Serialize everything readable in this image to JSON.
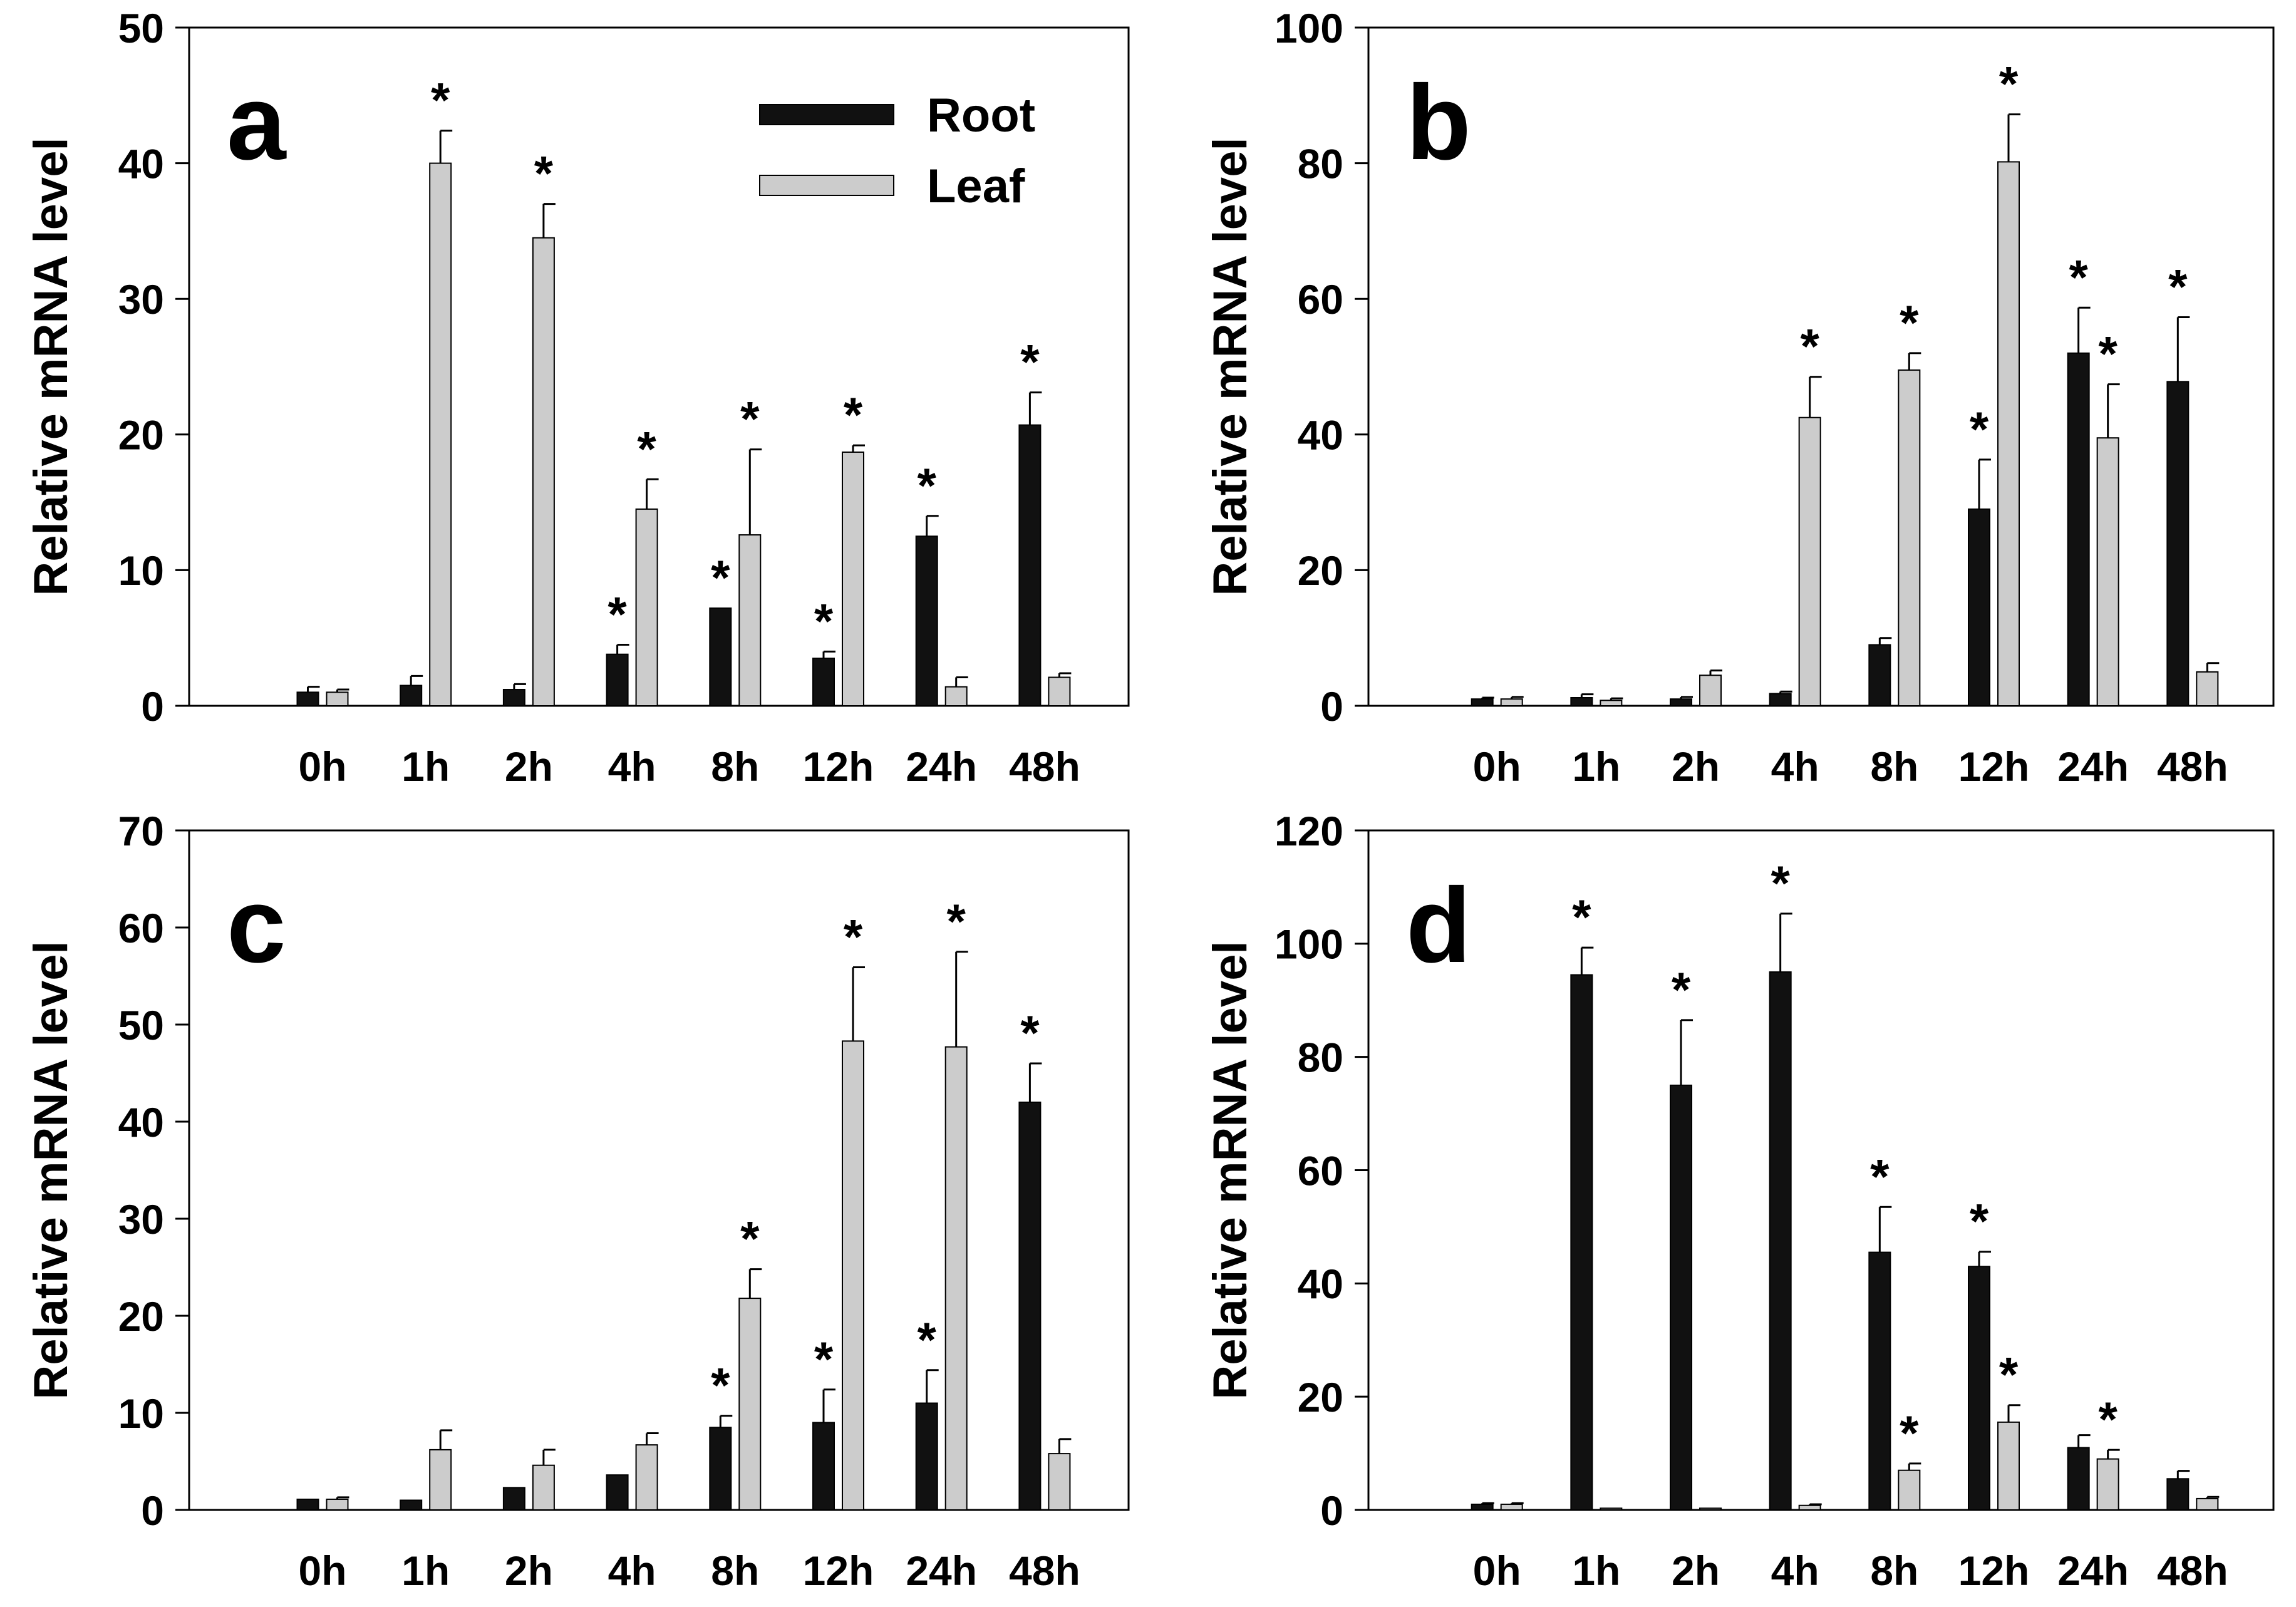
{
  "legend": {
    "items": [
      {
        "label": "Root",
        "color": "#111111"
      },
      {
        "label": "Leaf",
        "color": "#cccccc"
      }
    ]
  },
  "chart_data": [
    {
      "type": "bar",
      "panel_label": "a",
      "categories": [
        "0h",
        "1h",
        "2h",
        "4h",
        "8h",
        "12h",
        "24h",
        "48h"
      ],
      "ylabel": "Relative mRNA level",
      "ylim": [
        0,
        50
      ],
      "yticks": [
        "0",
        "10",
        "20",
        "30",
        "40",
        "50"
      ],
      "series": [
        {
          "name": "Root",
          "color": "#111111",
          "values": [
            1.0,
            1.5,
            1.2,
            3.8,
            7.2,
            3.5,
            12.5,
            20.7
          ],
          "errors": [
            0.4,
            0.7,
            0.4,
            0.7,
            0,
            0.5,
            1.5,
            2.4
          ],
          "significant": [
            false,
            false,
            false,
            true,
            true,
            true,
            true,
            true
          ]
        },
        {
          "name": "Leaf",
          "color": "#cccccc",
          "values": [
            1.0,
            40.0,
            34.5,
            14.5,
            12.6,
            18.7,
            1.4,
            2.1
          ],
          "errors": [
            0.2,
            2.4,
            2.5,
            2.2,
            6.3,
            0.5,
            0.7,
            0.3
          ],
          "significant": [
            false,
            true,
            true,
            true,
            true,
            true,
            false,
            false
          ]
        }
      ]
    },
    {
      "type": "bar",
      "panel_label": "b",
      "categories": [
        "0h",
        "1h",
        "2h",
        "4h",
        "8h",
        "12h",
        "24h",
        "48h"
      ],
      "ylabel": "Relative mRNA level",
      "ylim": [
        0,
        100
      ],
      "yticks": [
        "0",
        "20",
        "40",
        "60",
        "80",
        "100"
      ],
      "series": [
        {
          "name": "Root",
          "color": "#111111",
          "values": [
            1.0,
            1.2,
            1.0,
            1.8,
            9.0,
            29.0,
            52.0,
            47.8
          ],
          "errors": [
            0.2,
            0.5,
            0.3,
            0.3,
            1.0,
            7.3,
            6.7,
            9.5
          ],
          "significant": [
            false,
            false,
            false,
            false,
            false,
            true,
            true,
            true
          ]
        },
        {
          "name": "Leaf",
          "color": "#cccccc",
          "values": [
            1.0,
            0.8,
            4.5,
            42.5,
            49.5,
            80.2,
            39.5,
            5.0
          ],
          "errors": [
            0.3,
            0.3,
            0.7,
            6.0,
            2.5,
            7.0,
            7.9,
            1.3
          ],
          "significant": [
            false,
            false,
            false,
            true,
            true,
            true,
            true,
            false
          ]
        }
      ]
    },
    {
      "type": "bar",
      "panel_label": "c",
      "categories": [
        "0h",
        "1h",
        "2h",
        "4h",
        "8h",
        "12h",
        "24h",
        "48h"
      ],
      "ylabel": "Relative mRNA level",
      "ylim": [
        0,
        70
      ],
      "yticks": [
        "0",
        "10",
        "20",
        "30",
        "40",
        "50",
        "60",
        "70"
      ],
      "series": [
        {
          "name": "Root",
          "color": "#111111",
          "values": [
            1.1,
            1.0,
            2.3,
            3.6,
            8.5,
            9.0,
            11.0,
            42.0
          ],
          "errors": [
            0,
            0,
            0,
            0,
            1.2,
            3.4,
            3.4,
            4.0
          ],
          "significant": [
            false,
            false,
            false,
            false,
            true,
            true,
            true,
            true
          ]
        },
        {
          "name": "Leaf",
          "color": "#cccccc",
          "values": [
            1.1,
            6.2,
            4.6,
            6.7,
            21.8,
            48.3,
            47.7,
            5.8
          ],
          "errors": [
            0.2,
            2.0,
            1.6,
            1.2,
            3.0,
            7.6,
            9.8,
            1.5
          ],
          "significant": [
            false,
            false,
            false,
            false,
            true,
            true,
            true,
            false
          ]
        }
      ]
    },
    {
      "type": "bar",
      "panel_label": "d",
      "categories": [
        "0h",
        "1h",
        "2h",
        "4h",
        "8h",
        "12h",
        "24h",
        "48h"
      ],
      "ylabel": "Relative mRNA level",
      "ylim": [
        0,
        120
      ],
      "yticks": [
        "0",
        "20",
        "40",
        "60",
        "80",
        "100",
        "120"
      ],
      "series": [
        {
          "name": "Root",
          "color": "#111111",
          "values": [
            1.0,
            94.5,
            75.0,
            95.0,
            45.5,
            43.0,
            11.0,
            5.5
          ],
          "errors": [
            0.2,
            4.8,
            11.5,
            10.3,
            8.0,
            2.6,
            2.2,
            1.4
          ],
          "significant": [
            false,
            true,
            true,
            true,
            true,
            true,
            false,
            false
          ]
        },
        {
          "name": "Leaf",
          "color": "#cccccc",
          "values": [
            1.0,
            0.3,
            0.3,
            0.8,
            7.0,
            15.5,
            9.0,
            2.0
          ],
          "errors": [
            0.2,
            0,
            0,
            0.2,
            1.2,
            3.0,
            1.6,
            0.3
          ],
          "significant": [
            false,
            false,
            false,
            false,
            true,
            true,
            true,
            false
          ]
        }
      ]
    }
  ]
}
